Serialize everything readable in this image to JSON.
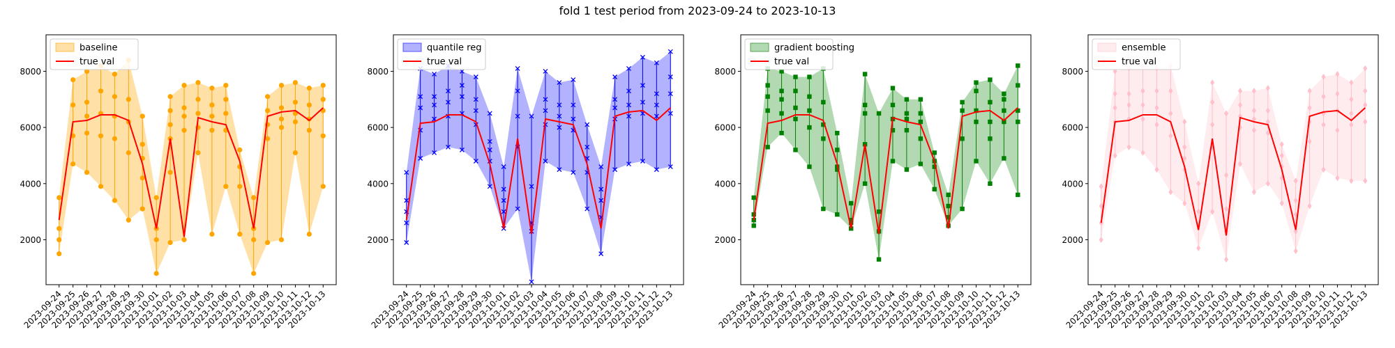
{
  "figure": {
    "title": "fold 1 test period from 2023-09-24 to 2023-10-13"
  },
  "chart_data": [
    {
      "type": "line",
      "title": "",
      "xlabel": "",
      "ylabel": "",
      "categories": [
        "2023-09-24",
        "2023-09-25",
        "2023-09-26",
        "2023-09-27",
        "2023-09-28",
        "2023-09-29",
        "2023-09-30",
        "2023-10-01",
        "2023-10-02",
        "2023-10-03",
        "2023-10-04",
        "2023-10-05",
        "2023-10-06",
        "2023-10-07",
        "2023-10-08",
        "2023-10-09",
        "2023-10-10",
        "2023-10-11",
        "2023-10-12",
        "2023-10-13"
      ],
      "ylim": [
        400,
        9300
      ],
      "yticks": [
        2000,
        4000,
        6000,
        8000
      ],
      "legend_position": "upper-left",
      "color": "#ffa500",
      "marker": "circle",
      "band_opacity": 0.35,
      "true_val": {
        "name": "true val",
        "color": "#ff0000",
        "values": [
          2700,
          6200,
          6250,
          6450,
          6450,
          6250,
          4700,
          2400,
          5600,
          2100,
          6350,
          6200,
          6100,
          4800,
          2400,
          6400,
          6550,
          6600,
          6250,
          6700
        ]
      },
      "band": {
        "name": "baseline",
        "lower": [
          1500,
          4700,
          4400,
          3900,
          3400,
          2700,
          3100,
          800,
          1900,
          2000,
          5100,
          2200,
          3900,
          2200,
          800,
          1900,
          2000,
          5100,
          2200,
          3900
        ],
        "upper": [
          3500,
          7700,
          8000,
          8200,
          7900,
          8400,
          6400,
          3500,
          7100,
          7500,
          7600,
          7400,
          7500,
          5200,
          3500,
          7100,
          7500,
          7600,
          7400,
          7500
        ]
      },
      "points": [
        [
          1500,
          2000,
          2400,
          3500
        ],
        [
          4700,
          5700,
          6800,
          7700
        ],
        [
          4400,
          5800,
          6400,
          6900,
          8000
        ],
        [
          3900,
          5700,
          6500,
          7300,
          8200
        ],
        [
          3400,
          5600,
          6400,
          7100,
          7900
        ],
        [
          2700,
          5100,
          6200,
          7000,
          8400
        ],
        [
          3100,
          4200,
          4900,
          5400,
          6400
        ],
        [
          800,
          2000,
          2400,
          3500
        ],
        [
          1900,
          4400,
          5600,
          6100,
          6600,
          7100
        ],
        [
          2000,
          5900,
          6400,
          6700,
          7500
        ],
        [
          5100,
          6000,
          6500,
          7000,
          7600
        ],
        [
          2200,
          5900,
          6400,
          6800,
          7400
        ],
        [
          3900,
          5900,
          6500,
          7000,
          7500
        ],
        [
          2200,
          3900,
          4600,
          5200
        ],
        [
          800,
          2000,
          2400,
          3500
        ],
        [
          1900,
          5600,
          6100,
          6600,
          7100
        ],
        [
          2000,
          6000,
          6300,
          6700,
          7500
        ],
        [
          5100,
          6200,
          6500,
          6900,
          7600
        ],
        [
          2200,
          5900,
          6300,
          6800,
          7400
        ],
        [
          3900,
          5700,
          6600,
          7000,
          7500
        ]
      ]
    },
    {
      "type": "line",
      "title": "",
      "xlabel": "",
      "ylabel": "",
      "categories": [
        "2023-09-24",
        "2023-09-25",
        "2023-09-26",
        "2023-09-27",
        "2023-09-28",
        "2023-09-29",
        "2023-09-30",
        "2023-10-01",
        "2023-10-02",
        "2023-10-03",
        "2023-10-04",
        "2023-10-05",
        "2023-10-06",
        "2023-10-07",
        "2023-10-08",
        "2023-10-09",
        "2023-10-10",
        "2023-10-11",
        "2023-10-12",
        "2023-10-13"
      ],
      "ylim": [
        400,
        9300
      ],
      "yticks": [
        2000,
        4000,
        6000,
        8000
      ],
      "legend_position": "upper-left",
      "color": "#0000ff",
      "marker": "x",
      "band_opacity": 0.3,
      "true_val": {
        "name": "true val",
        "color": "#ff0000",
        "values": [
          2700,
          6150,
          6200,
          6450,
          6450,
          6200,
          4700,
          2400,
          5600,
          2200,
          6300,
          6200,
          6100,
          4700,
          2400,
          6400,
          6550,
          6600,
          6250,
          6700
        ]
      },
      "band": {
        "name": "quantile reg",
        "lower": [
          1900,
          4900,
          5100,
          5300,
          5200,
          4800,
          3900,
          2400,
          3100,
          500,
          4800,
          4500,
          4400,
          3100,
          1500,
          4500,
          4700,
          4800,
          4500,
          4600
        ],
        "upper": [
          4400,
          8100,
          7900,
          8200,
          8000,
          7800,
          6500,
          4600,
          8100,
          6400,
          8000,
          7600,
          7700,
          6100,
          4600,
          7800,
          8100,
          8500,
          8300,
          8700
        ]
      },
      "points": [
        [
          1900,
          2600,
          3000,
          3400,
          4400
        ],
        [
          4900,
          5900,
          6700,
          7100,
          8100
        ],
        [
          5100,
          6300,
          6800,
          7100,
          7900
        ],
        [
          5300,
          6400,
          6900,
          7300,
          8200
        ],
        [
          5200,
          6500,
          7100,
          7500,
          8000
        ],
        [
          4800,
          6100,
          6600,
          7000,
          7800
        ],
        [
          3900,
          4800,
          5200,
          5500,
          6500
        ],
        [
          2400,
          3000,
          3400,
          3800,
          4600
        ],
        [
          3100,
          5300,
          6400,
          7300,
          8100
        ],
        [
          500,
          2300,
          2600,
          3900,
          6400
        ],
        [
          4800,
          6100,
          6600,
          7000,
          8000
        ],
        [
          4500,
          6000,
          6400,
          6800,
          7600
        ],
        [
          4400,
          5900,
          6300,
          6800,
          7700
        ],
        [
          3100,
          4400,
          4900,
          5300,
          6100
        ],
        [
          1500,
          2800,
          3400,
          3800,
          4600
        ],
        [
          4500,
          6300,
          6700,
          7000,
          7800
        ],
        [
          4700,
          6400,
          6800,
          7300,
          8100
        ],
        [
          4800,
          6500,
          6900,
          7500,
          8500
        ],
        [
          4500,
          6400,
          6800,
          7200,
          8300
        ],
        [
          4600,
          6500,
          7200,
          7800,
          8700
        ]
      ]
    },
    {
      "type": "line",
      "title": "",
      "xlabel": "",
      "ylabel": "",
      "categories": [
        "2023-09-24",
        "2023-09-25",
        "2023-09-26",
        "2023-09-27",
        "2023-09-28",
        "2023-09-29",
        "2023-09-30",
        "2023-10-01",
        "2023-10-02",
        "2023-10-03",
        "2023-10-04",
        "2023-10-05",
        "2023-10-06",
        "2023-10-07",
        "2023-10-08",
        "2023-10-09",
        "2023-10-10",
        "2023-10-11",
        "2023-10-12",
        "2023-10-13"
      ],
      "ylim": [
        400,
        9300
      ],
      "yticks": [
        2000,
        4000,
        6000,
        8000
      ],
      "legend_position": "upper-left",
      "color": "#008000",
      "marker": "square",
      "band_opacity": 0.3,
      "true_val": {
        "name": "true val",
        "color": "#ff0000",
        "values": [
          2700,
          6150,
          6250,
          6450,
          6450,
          6250,
          4700,
          2400,
          5400,
          2200,
          6350,
          6200,
          6100,
          4800,
          2400,
          6400,
          6550,
          6600,
          6250,
          6700
        ]
      },
      "band": {
        "name": "gradient boosting",
        "lower": [
          2500,
          5300,
          5800,
          5200,
          4600,
          3100,
          2900,
          2400,
          4000,
          1300,
          4800,
          4500,
          4700,
          3800,
          2500,
          3100,
          4800,
          4000,
          4900,
          3600
        ],
        "upper": [
          3500,
          8100,
          8000,
          7800,
          7800,
          8100,
          5800,
          3300,
          7900,
          6500,
          7400,
          7000,
          7000,
          5100,
          3600,
          6900,
          7600,
          7700,
          7200,
          8200
        ]
      },
      "points": [
        [
          2500,
          2700,
          2900,
          3500
        ],
        [
          5300,
          6600,
          7100,
          7500,
          8100
        ],
        [
          5800,
          6500,
          7000,
          7300,
          8000
        ],
        [
          5200,
          6300,
          6700,
          7300,
          7800
        ],
        [
          4600,
          6000,
          6600,
          7100,
          7800
        ],
        [
          3100,
          5600,
          6100,
          6900,
          8100
        ],
        [
          2900,
          4500,
          4600,
          5200,
          5800
        ],
        [
          2400,
          2600,
          2700,
          3300
        ],
        [
          4000,
          5400,
          6500,
          6800,
          7900
        ],
        [
          1300,
          2300,
          3000,
          6500
        ],
        [
          4800,
          5900,
          6300,
          6800,
          7400
        ],
        [
          4500,
          5900,
          6300,
          6500,
          7000
        ],
        [
          4700,
          5600,
          6200,
          6500,
          7000
        ],
        [
          3800,
          4600,
          4800,
          5100
        ],
        [
          2500,
          2800,
          3200,
          3600
        ],
        [
          3100,
          5600,
          6600,
          6900
        ],
        [
          4800,
          6200,
          6600,
          7300,
          7600
        ],
        [
          4000,
          5600,
          6200,
          6900,
          7700
        ],
        [
          4900,
          6200,
          6600,
          7000,
          7200
        ],
        [
          3600,
          6200,
          6600,
          7500,
          8200
        ]
      ]
    },
    {
      "type": "line",
      "title": "",
      "xlabel": "",
      "ylabel": "",
      "categories": [
        "2023-09-24",
        "2023-09-25",
        "2023-09-26",
        "2023-09-27",
        "2023-09-28",
        "2023-09-29",
        "2023-09-30",
        "2023-10-01",
        "2023-10-02",
        "2023-10-03",
        "2023-10-04",
        "2023-10-05",
        "2023-10-06",
        "2023-10-07",
        "2023-10-08",
        "2023-10-09",
        "2023-10-10",
        "2023-10-11",
        "2023-10-12",
        "2023-10-13"
      ],
      "ylim": [
        400,
        9300
      ],
      "yticks": [
        2000,
        4000,
        6000,
        8000
      ],
      "legend_position": "upper-left",
      "color": "#ffc0cb",
      "marker": "diamond",
      "band_opacity": 0.3,
      "true_val": {
        "name": "true val",
        "color": "#ff0000",
        "values": [
          2600,
          6200,
          6250,
          6450,
          6450,
          6200,
          4600,
          2350,
          5600,
          2150,
          6350,
          6200,
          6100,
          4500,
          2350,
          6400,
          6550,
          6600,
          6250,
          6700
        ]
      },
      "band": {
        "name": "ensemble",
        "lower": [
          2000,
          5000,
          5300,
          5100,
          4500,
          3700,
          3300,
          1700,
          3000,
          1300,
          4700,
          3700,
          4000,
          3300,
          1600,
          3200,
          4500,
          4200,
          4100,
          4100
        ],
        "upper": [
          3900,
          8000,
          8100,
          8200,
          8100,
          8200,
          6200,
          4000,
          7600,
          6500,
          7300,
          7300,
          7400,
          5400,
          4100,
          7300,
          7800,
          7900,
          7600,
          8100
        ]
      },
      "points": [
        [
          2000,
          2600,
          3200,
          3900
        ],
        [
          5000,
          6200,
          6700,
          7200,
          8000
        ],
        [
          5300,
          6300,
          6800,
          7200,
          8100
        ],
        [
          5100,
          6300,
          6800,
          7300,
          8200
        ],
        [
          4500,
          6100,
          6700,
          7300,
          8100
        ],
        [
          3700,
          5700,
          6500,
          7300,
          8200
        ],
        [
          3300,
          4500,
          4900,
          5300,
          6200
        ],
        [
          1700,
          2500,
          3000,
          4000
        ],
        [
          3000,
          5300,
          6100,
          6900,
          7600
        ],
        [
          1300,
          2300,
          3100,
          4300,
          6500
        ],
        [
          4700,
          6000,
          6400,
          6800,
          7300
        ],
        [
          3700,
          5900,
          6300,
          6600,
          7300
        ],
        [
          4000,
          5800,
          6200,
          6600,
          7400
        ],
        [
          3300,
          4200,
          4600,
          5000,
          5400
        ],
        [
          1600,
          2300,
          2900,
          3400,
          4100
        ],
        [
          3200,
          5500,
          6200,
          6700,
          7300
        ],
        [
          4500,
          6100,
          6500,
          7100,
          7800
        ],
        [
          4200,
          5900,
          6600,
          7200,
          7900
        ],
        [
          4100,
          6100,
          6500,
          7000,
          7600
        ],
        [
          4100,
          6200,
          6800,
          7300,
          8100
        ]
      ]
    }
  ]
}
